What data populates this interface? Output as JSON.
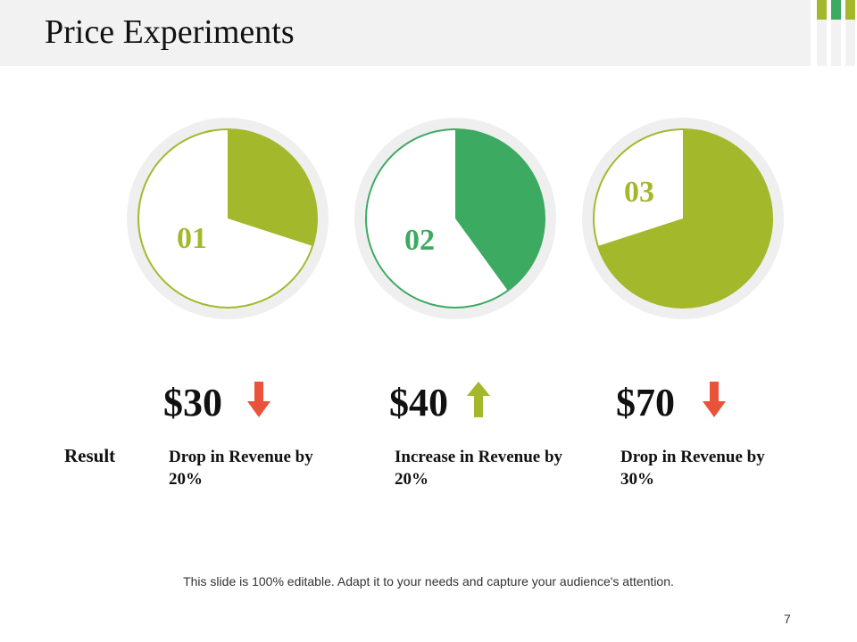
{
  "title": "Price Experiments",
  "colors": {
    "lime": "#a4b82c",
    "green": "#3daa62",
    "down": "#e8533a",
    "up": "#a4b82c",
    "ring": "#efefef"
  },
  "chart_data": [
    {
      "type": "pie",
      "label": "01",
      "filled_fraction": 0.3,
      "color": "#a4b82c"
    },
    {
      "type": "pie",
      "label": "02",
      "filled_fraction": 0.4,
      "color": "#3daa62"
    },
    {
      "type": "pie",
      "label": "03",
      "filled_fraction": 0.7,
      "color": "#a4b82c"
    }
  ],
  "experiments": [
    {
      "price": "$30",
      "direction": "down",
      "description": "Drop in Revenue by 20%"
    },
    {
      "price": "$40",
      "direction": "up",
      "description": "Increase in Revenue by 20%"
    },
    {
      "price": "$70",
      "direction": "down",
      "description": "Drop in Revenue by 30%"
    }
  ],
  "result_label": "Result",
  "footer": "This slide is 100% editable. Adapt it to your needs and capture your audience's attention.",
  "page_number": "7"
}
